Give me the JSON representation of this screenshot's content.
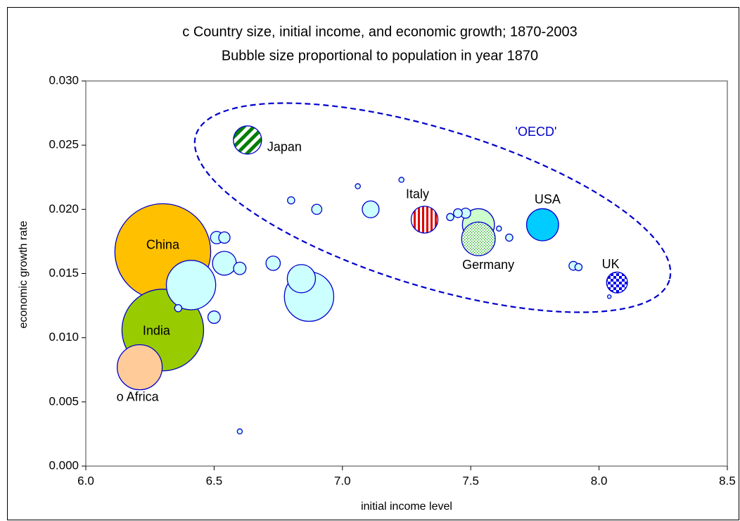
{
  "chart_data": {
    "type": "bubble",
    "title": "c Country size, initial income, and economic growth; 1870-2003",
    "subtitle": "Bubble size proportional to population in year 1870",
    "x_label": "initial income level",
    "y_label": "economic growth rate",
    "xlim": [
      6.0,
      8.5
    ],
    "ylim": [
      0.0,
      0.03
    ],
    "xticks": [
      {
        "value": 6.0,
        "label": "6.0"
      },
      {
        "value": 6.5,
        "label": "6.5"
      },
      {
        "value": 7.0,
        "label": "7.0"
      },
      {
        "value": 7.5,
        "label": "7.5"
      },
      {
        "value": 8.0,
        "label": "8.0"
      },
      {
        "value": 8.5,
        "label": "8.5"
      }
    ],
    "yticks": [
      {
        "value": 0.0,
        "label": "0.000"
      },
      {
        "value": 0.005,
        "label": "0.005"
      },
      {
        "value": 0.01,
        "label": "0.010"
      },
      {
        "value": 0.015,
        "label": "0.015"
      },
      {
        "value": 0.02,
        "label": "0.020"
      },
      {
        "value": 0.025,
        "label": "0.025"
      },
      {
        "value": 0.03,
        "label": "0.030"
      }
    ],
    "group_label": "'OECD'",
    "group_color": "#0000cc",
    "edge_color": "#0000cc",
    "x": [
      6.3,
      6.3,
      6.41,
      6.87,
      6.21,
      7.53,
      7.53,
      7.78,
      6.84,
      6.63,
      7.32,
      6.54,
      8.07,
      7.11,
      6.73,
      6.51,
      6.6,
      6.5,
      6.54,
      6.9,
      7.48,
      7.45,
      7.9,
      6.36,
      6.8,
      7.42,
      7.65,
      7.92,
      7.06,
      7.23,
      7.61,
      6.6,
      8.04
    ],
    "values": [
      0.0167,
      0.0106,
      0.0141,
      0.0132,
      0.0077,
      0.0188,
      0.0177,
      0.0188,
      0.0146,
      0.0254,
      0.0192,
      0.0158,
      0.0143,
      0.02,
      0.0158,
      0.0178,
      0.0154,
      0.0116,
      0.0178,
      0.02,
      0.0197,
      0.0197,
      0.0156,
      0.0123,
      0.0207,
      0.0194,
      0.0178,
      0.0155,
      0.0218,
      0.0223,
      0.0185,
      0.0027,
      0.0132
    ],
    "sizes": [
      358,
      260,
      95,
      95,
      79,
      40,
      44,
      40,
      31,
      31,
      28,
      22,
      17,
      11,
      8,
      6,
      6,
      6,
      5,
      4,
      4,
      3,
      3,
      2,
      2,
      2,
      2,
      2,
      1,
      1,
      1,
      1,
      0.5
    ],
    "colors": [
      "#ffc000",
      "#99cc00",
      "#ccffff",
      "#ccffff",
      "#ffcc99",
      "#ccffcc",
      "#009900",
      "#00ccff",
      "#ccffff",
      "#008000",
      "#dd0000",
      "#ccffff",
      "#0000ee",
      "#ccffff",
      "#ccffff",
      "#ccffff",
      "#ccffff",
      "#ccffff",
      "#ccffff",
      "#ccffff",
      "#ccffff",
      "#ccffff",
      "#ccffff",
      "#ccffff",
      "#ccffff",
      "#ccffff",
      "#ccffff",
      "#ccffff",
      "#ccffff",
      "#ccffff",
      "#ccffff",
      "#ccffff",
      "#ccffff"
    ],
    "patterns": [
      null,
      null,
      null,
      null,
      null,
      null,
      "dots",
      null,
      null,
      "diagonal-stripes",
      "vertical-stripes",
      null,
      "checker",
      null,
      null,
      null,
      null,
      null,
      null,
      null,
      null,
      null,
      null,
      null,
      null,
      null,
      null,
      null,
      null,
      null,
      null,
      null,
      null
    ],
    "labels": [
      "China",
      "India",
      null,
      null,
      "o Africa",
      null,
      "Germany",
      "USA",
      null,
      "Japan",
      "Italy",
      null,
      "UK",
      null,
      null,
      null,
      null,
      null,
      null,
      null,
      null,
      null,
      null,
      null,
      null,
      null,
      null,
      null,
      null,
      null,
      null,
      null,
      null
    ]
  }
}
